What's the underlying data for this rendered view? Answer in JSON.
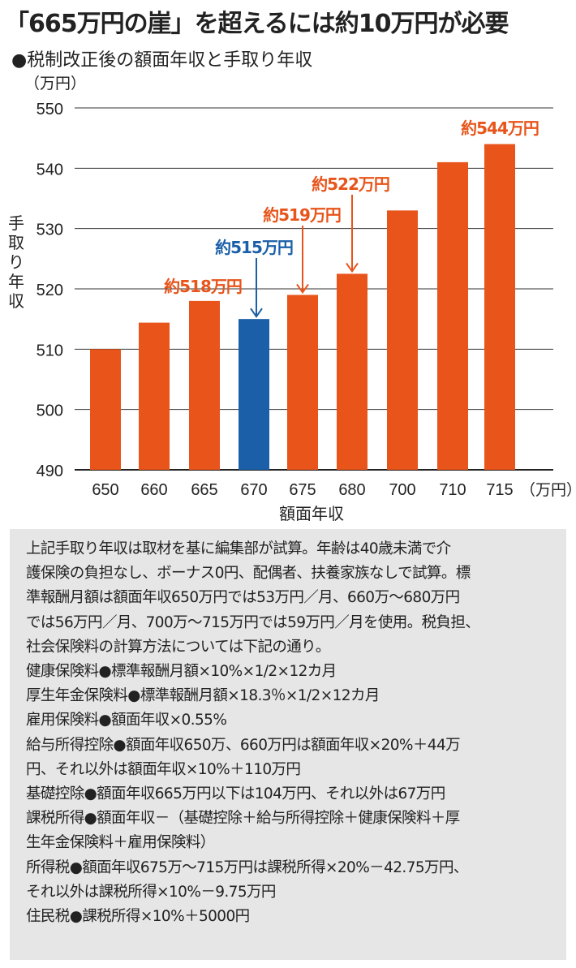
{
  "title": "「665万円の崖」を超えるには約10万円が必要",
  "subtitle": "●税制改正後の額面年収と手取り年収",
  "chart_data": {
    "type": "bar",
    "yunit": "（万円）",
    "xunit": "（万円）",
    "ylabel": "手取り年収",
    "xlabel": "額面年収",
    "ylim": [
      490,
      550
    ],
    "yticks": [
      490,
      500,
      510,
      520,
      530,
      540,
      550
    ],
    "grid": true,
    "categories": [
      "650",
      "660",
      "665",
      "670",
      "675",
      "680",
      "700",
      "710",
      "715"
    ],
    "values": [
      510,
      514.4,
      518,
      515,
      519,
      522.5,
      533,
      541,
      544
    ],
    "highlight_index": 3,
    "colors": {
      "default": "#e8541a",
      "highlight": "#1a5fa8"
    },
    "annotations": [
      {
        "index": 2,
        "text": "約518万円",
        "color": "#e8541a",
        "arrow": false
      },
      {
        "index": 3,
        "text": "約515万円",
        "color": "#1a5fa8",
        "arrow": true
      },
      {
        "index": 4,
        "text": "約519万円",
        "color": "#e8541a",
        "arrow": true
      },
      {
        "index": 5,
        "text": "約522万円",
        "color": "#e8541a",
        "arrow": true
      },
      {
        "index": 8,
        "text": "約544万円",
        "color": "#e8541a",
        "arrow": false
      }
    ]
  },
  "notes": [
    "上記手取り年収は取材を基に編集部が試算。年齢は40歳未満で介",
    "護保険の負担なし、ボーナス0円、配偶者、扶養家族なしで試算。標",
    "準報酬月額は額面年収650万円では53万円／月、660万～680万円",
    "では56万円／月、700万～715万円では59万円／月を使用。税負担、",
    "社会保険料の計算方法については下記の通り。",
    "健康保険料●標準報酬月額×10%×1/2×12カ月",
    "厚生年金保険料●標準報酬月額×18.3％×1/2×12カ月",
    "雇用保険料●額面年収×0.55%",
    "給与所得控除●額面年収650万、660万円は額面年収×20%＋44万",
    "円、それ以外は額面年収×10%＋110万円",
    "基礎控除●額面年収665万円以下は104万円、それ以外は67万円",
    "課税所得●額面年収－（基礎控除＋給与所得控除＋健康保険料＋厚",
    "生年金保険料＋雇用保険料）",
    "所得税●額面年収675万～715万円は課税所得×20%－42.75万円、",
    "それ以外は課税所得×10%－9.75万円",
    "住民税●課税所得×10%＋5000円"
  ]
}
